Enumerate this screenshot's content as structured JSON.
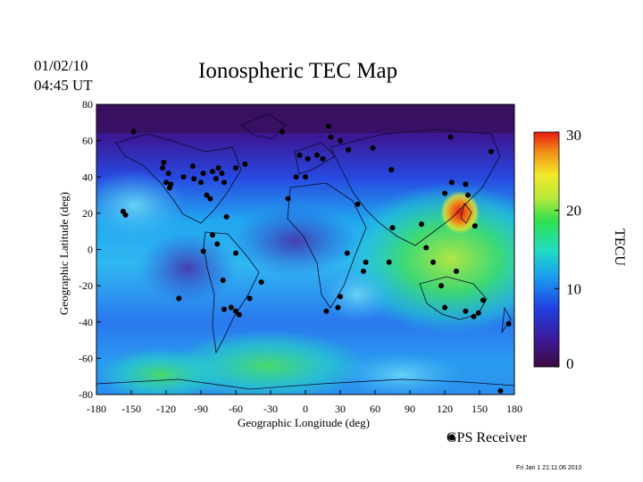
{
  "header": {
    "date": "01/02/10",
    "time": "04:45 UT",
    "title": "Ionospheric TEC Map"
  },
  "axes": {
    "xlabel": "Geographic Longitude (deg)",
    "ylabel": "Geographic Latitude (deg)",
    "xticks": [
      "-180",
      "-150",
      "-120",
      "-90",
      "-60",
      "-30",
      "0",
      "30",
      "60",
      "90",
      "120",
      "150",
      "180"
    ],
    "yticks": [
      "80",
      "60",
      "40",
      "20",
      "0",
      "-20",
      "-40",
      "-60",
      "-80"
    ],
    "xlim": [
      -180,
      180
    ],
    "ylim": [
      -80,
      80
    ]
  },
  "colorbar": {
    "unit": "TECU",
    "ticks": [
      "30",
      "20",
      "10",
      "0"
    ],
    "range": [
      0,
      30
    ],
    "colors": [
      "#3d0a3f",
      "#3b1a9a",
      "#2040e0",
      "#1a9cf0",
      "#22ddc0",
      "#2ee050",
      "#b8e83a",
      "#f4e82a",
      "#f08a18",
      "#e81a10"
    ]
  },
  "legend": {
    "label": "GPS Receiver",
    "marker_color": "#000000"
  },
  "footer": {
    "timestamp": "Fri Jan  1 21:11:06 2010"
  },
  "map_data": {
    "tec_hotspots": [
      {
        "lon": 132,
        "lat": 22,
        "tecu": 30,
        "note_color": "red"
      },
      {
        "lon": 110,
        "lat": 5,
        "tecu": 18
      },
      {
        "lon": -55,
        "lat": -58,
        "tecu": 18
      },
      {
        "lon": -110,
        "lat": -15,
        "tecu": 7
      }
    ],
    "receivers": [
      [
        -148,
        65
      ],
      [
        -122,
        48
      ],
      [
        -123,
        45
      ],
      [
        -118,
        42
      ],
      [
        -120,
        37
      ],
      [
        -117,
        34
      ],
      [
        -116,
        36
      ],
      [
        -105,
        40
      ],
      [
        -97,
        46
      ],
      [
        -96,
        39
      ],
      [
        -88,
        42
      ],
      [
        -90,
        37
      ],
      [
        -80,
        43
      ],
      [
        -77,
        39
      ],
      [
        -75,
        45
      ],
      [
        -72,
        42
      ],
      [
        -70,
        37
      ],
      [
        -85,
        30
      ],
      [
        -82,
        28
      ],
      [
        -68,
        18
      ],
      [
        -60,
        45
      ],
      [
        -52,
        47
      ],
      [
        -157,
        21
      ],
      [
        -155,
        19
      ],
      [
        -80,
        8
      ],
      [
        -76,
        3
      ],
      [
        -60,
        -2
      ],
      [
        -88,
        -1
      ],
      [
        -71,
        -17
      ],
      [
        -70,
        -33
      ],
      [
        -64,
        -32
      ],
      [
        -60,
        -34
      ],
      [
        -57,
        -36
      ],
      [
        -48,
        -27
      ],
      [
        -38,
        -18
      ],
      [
        -109,
        -27
      ],
      [
        -20,
        65
      ],
      [
        -5,
        52
      ],
      [
        2,
        50
      ],
      [
        10,
        52
      ],
      [
        15,
        50
      ],
      [
        -8,
        40
      ],
      [
        -15,
        28
      ],
      [
        0,
        40
      ],
      [
        20,
        68
      ],
      [
        22,
        62
      ],
      [
        30,
        60
      ],
      [
        37,
        55
      ],
      [
        58,
        56
      ],
      [
        74,
        44
      ],
      [
        45,
        25
      ],
      [
        52,
        -7
      ],
      [
        30,
        -26
      ],
      [
        18,
        -34
      ],
      [
        28,
        -32
      ],
      [
        36,
        -2
      ],
      [
        50,
        -12
      ],
      [
        75,
        12
      ],
      [
        72,
        -7
      ],
      [
        100,
        14
      ],
      [
        104,
        1
      ],
      [
        120,
        31
      ],
      [
        126,
        37
      ],
      [
        138,
        36
      ],
      [
        140,
        30
      ],
      [
        117,
        -20
      ],
      [
        120,
        -32
      ],
      [
        138,
        -34
      ],
      [
        145,
        -37
      ],
      [
        153,
        -28
      ],
      [
        149,
        -35
      ],
      [
        130,
        -12
      ],
      [
        110,
        -7
      ],
      [
        160,
        54
      ],
      [
        125,
        62
      ],
      [
        175,
        -41
      ],
      [
        168,
        -78
      ],
      [
        146,
        13
      ]
    ]
  }
}
